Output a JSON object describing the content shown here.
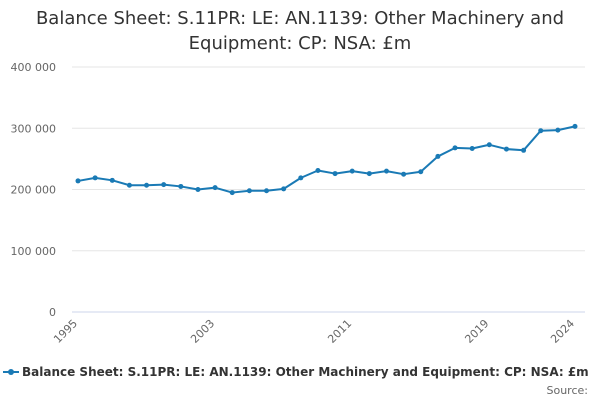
{
  "chart_data": {
    "type": "line",
    "title_line1": "Balance Sheet: S.11PR: LE: AN.1139: Other Machinery and",
    "title_line2": "Equipment: CP: NSA: £m",
    "xlabel": "",
    "ylabel": "",
    "ylim": [
      0,
      400000
    ],
    "y_ticks": [
      0,
      100000,
      200000,
      300000,
      400000
    ],
    "y_tick_labels": [
      "0",
      "100 000",
      "200 000",
      "300 000",
      "400 000"
    ],
    "x_tick_labels": [
      "1995",
      "2003",
      "2011",
      "2019",
      "2024"
    ],
    "x": [
      1995,
      1996,
      1997,
      1998,
      1999,
      2000,
      2001,
      2002,
      2003,
      2004,
      2005,
      2006,
      2007,
      2008,
      2009,
      2010,
      2011,
      2012,
      2013,
      2014,
      2015,
      2016,
      2017,
      2018,
      2019,
      2020,
      2021,
      2022,
      2023,
      2024
    ],
    "grid": "horizontal",
    "legend_position": "bottom",
    "series": [
      {
        "name": "Balance Sheet: S.11PR: LE: AN.1139: Other Machinery and Equipment: CP: NSA: £m",
        "color": "#1a7ab5",
        "values": [
          214000,
          219000,
          215000,
          207000,
          207000,
          208000,
          205000,
          200000,
          203000,
          195000,
          198000,
          198000,
          201000,
          219000,
          231000,
          226000,
          230000,
          226000,
          230000,
          225000,
          229000,
          254000,
          268000,
          267000,
          273000,
          266000,
          264000,
          296000,
          297000,
          303000
        ]
      }
    ]
  },
  "source_label": "Source:"
}
